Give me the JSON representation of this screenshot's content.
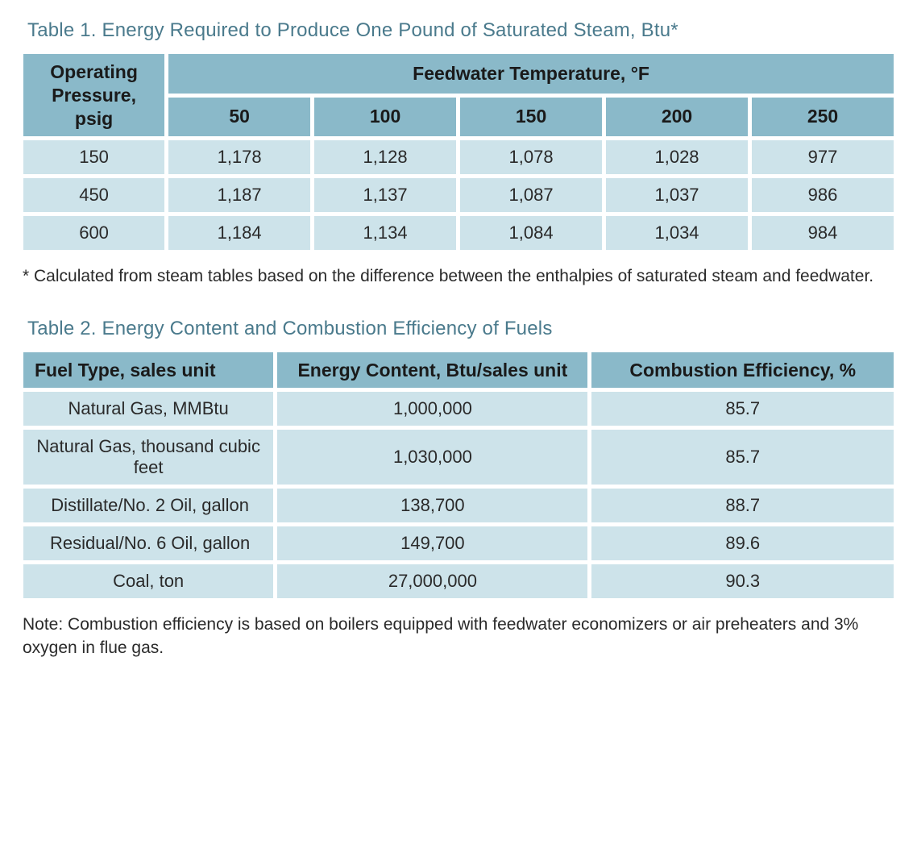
{
  "colors": {
    "title": "#4a7a8c",
    "header_bg": "#8ab9c9",
    "cell_bg": "#cde3ea",
    "text": "#2a2a2a",
    "page_bg": "#ffffff"
  },
  "typography": {
    "title_fontsize_pt": 18,
    "header_fontsize_pt": 17,
    "cell_fontsize_pt": 16,
    "footnote_fontsize_pt": 15
  },
  "table1": {
    "type": "table",
    "title": "Table 1. Energy Required to Produce One Pound of Saturated Steam, Btu*",
    "row_header_label": "Operating Pressure, psig",
    "col_group_label": "Feedwater Temperature, °F",
    "columns": [
      "50",
      "100",
      "150",
      "200",
      "250"
    ],
    "rows": [
      {
        "pressure": "150",
        "values": [
          "1,178",
          "1,128",
          "1,078",
          "1,028",
          "977"
        ]
      },
      {
        "pressure": "450",
        "values": [
          "1,187",
          "1,137",
          "1,087",
          "1,037",
          "986"
        ]
      },
      {
        "pressure": "600",
        "values": [
          "1,184",
          "1,134",
          "1,084",
          "1,034",
          "984"
        ]
      }
    ],
    "footnote": "* Calculated from steam tables based on the difference between the enthalpies of saturated steam and feedwater."
  },
  "table2": {
    "type": "table",
    "title": "Table 2. Energy Content and Combustion Efficiency of Fuels",
    "columns": [
      "Fuel Type, sales unit",
      "Energy Content, Btu/sales unit",
      "Combustion Efficiency, %"
    ],
    "rows": [
      {
        "fuel": "Natural Gas, MMBtu",
        "energy": "1,000,000",
        "eff": "85.7"
      },
      {
        "fuel": "Natural Gas, thousand cubic feet",
        "energy": "1,030,000",
        "eff": "85.7"
      },
      {
        "fuel": "Distillate/No. 2 Oil, gallon",
        "energy": "138,700",
        "eff": "88.7"
      },
      {
        "fuel": "Residual/No. 6 Oil, gallon",
        "energy": "149,700",
        "eff": "89.6"
      },
      {
        "fuel": "Coal, ton",
        "energy": "27,000,000",
        "eff": "90.3"
      }
    ],
    "note": "Note: Combustion efficiency is based on boilers equipped with feedwater economizers or air preheaters and 3% oxygen in flue gas."
  }
}
